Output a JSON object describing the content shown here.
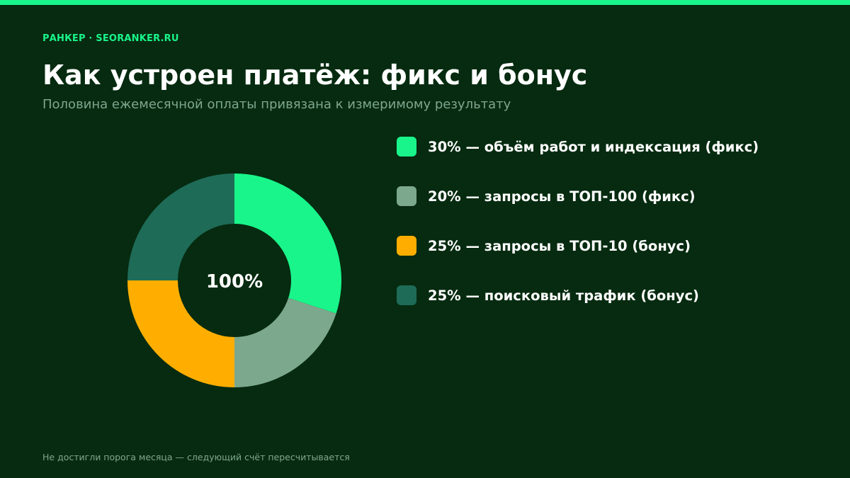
{
  "brand": "РАНКЕР · SEORANKER.RU",
  "title": "Как устроен платёж: фикс и бонус",
  "subtitle": "Половина ежемесячной оплаты привязана к измеримому результату",
  "footer": "Не достигли порога месяца — следующий счёт пересчитывается",
  "colors": {
    "background": "#062b10",
    "accent": "#19f58a",
    "muted_text": "#7fa68f"
  },
  "chart_data": {
    "type": "pie",
    "center_label": "100%",
    "categories": [
      "30% — объём работ и индексация (фикс)",
      "20% — запросы в ТОП-100 (фикс)",
      "25% — запросы в ТОП-10 (бонус)",
      "25% — поисковый трафик (бонус)"
    ],
    "values": [
      30,
      20,
      25,
      25
    ],
    "colors": [
      "#19f58a",
      "#7ca88d",
      "#ffae00",
      "#1e6b57"
    ],
    "legend_position": "right"
  }
}
